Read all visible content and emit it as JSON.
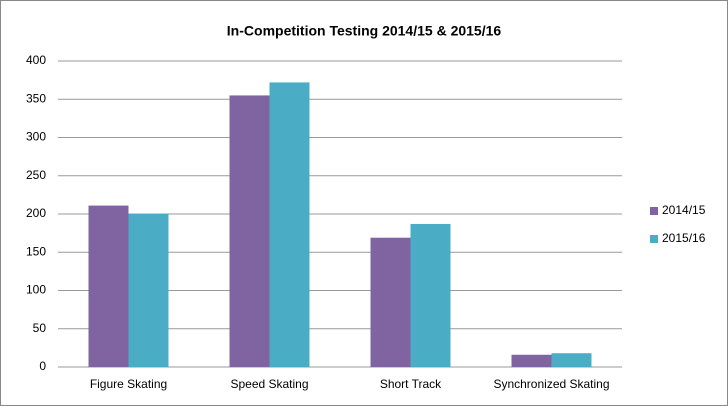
{
  "chart_data": {
    "type": "bar",
    "title": "In-Competition Testing 2014/15 & 2015/16",
    "categories": [
      "Figure Skating",
      "Speed Skating",
      "Short Track",
      "Synchronized Skating"
    ],
    "series": [
      {
        "name": "2014/15",
        "color": "#8064a2",
        "values": [
          211,
          355,
          169,
          16
        ]
      },
      {
        "name": "2015/16",
        "color": "#4bacc6",
        "values": [
          200,
          372,
          187,
          18
        ]
      }
    ],
    "ylim": [
      0,
      400
    ],
    "yticks": [
      0,
      50,
      100,
      150,
      200,
      250,
      300,
      350,
      400
    ],
    "grid": true,
    "legend": "right"
  }
}
